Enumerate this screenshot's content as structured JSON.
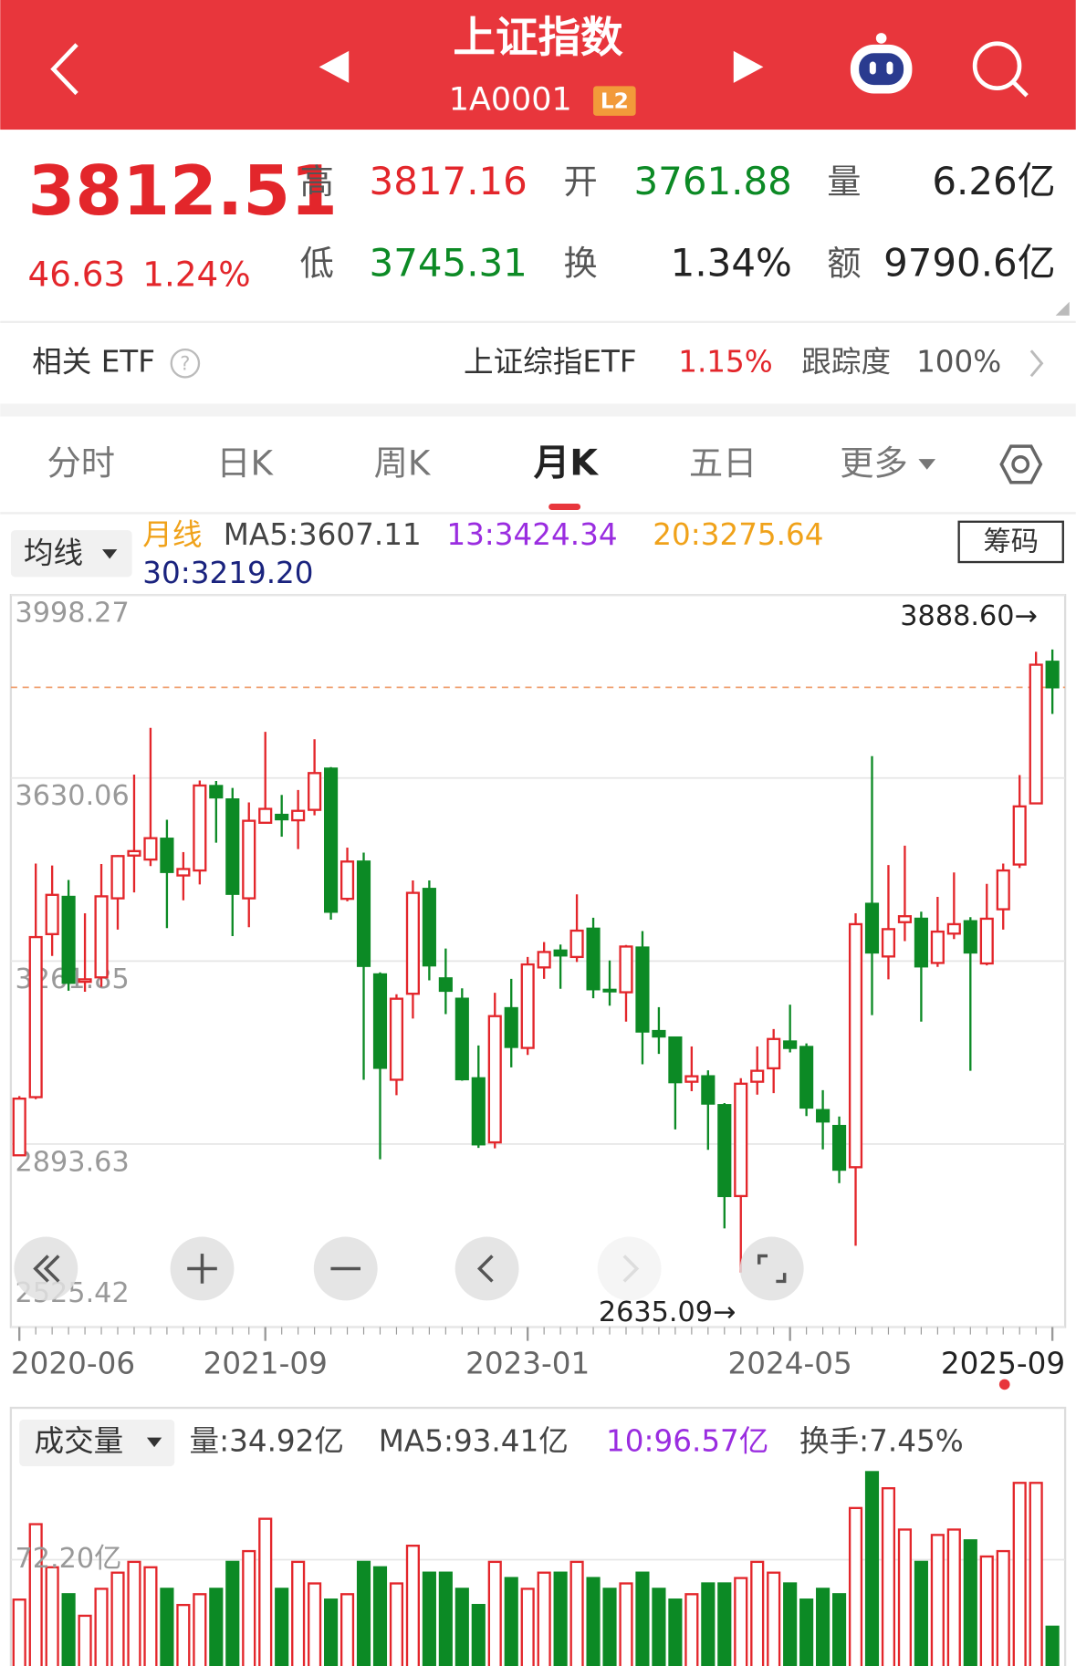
{
  "header": {
    "title": "上证指数",
    "code": "1A0001",
    "badge": "L2"
  },
  "quote": {
    "price": 3812.51,
    "change": 46.63,
    "change_pct": "1.24%",
    "labels": [
      "高",
      "开",
      "量",
      "低",
      "换",
      "额"
    ],
    "high": 3817.16,
    "open": 3761.88,
    "volume": "6.26亿",
    "low": 3745.31,
    "turnover": "1.34%",
    "amount": "9790.6亿"
  },
  "etf": {
    "label": "相关 ETF",
    "name": "上证综指ETF",
    "change": "1.15%",
    "tracking_label": "跟踪度",
    "tracking": "100%"
  },
  "tabs": [
    "分时",
    "日K",
    "周K",
    "月K",
    "五日",
    "更多"
  ],
  "indicator": {
    "selector": "均线",
    "period": "月线",
    "ma5": "MA5:3607.11",
    "ma13": "13:3424.34",
    "ma20": "20:3275.64",
    "ma30": "30:3219.20",
    "chip": "筹码"
  },
  "volume_legend": {
    "selector": "成交量",
    "vol": "量:34.92亿",
    "ma5": "MA5:93.41亿",
    "ma10": "10:96.57亿",
    "turnover": "换手:7.45%"
  },
  "chart_data": [
    {
      "type": "candlestick",
      "categories": [
        "2020-06",
        null,
        null,
        null,
        null,
        null,
        null,
        null,
        null,
        null,
        null,
        null,
        null,
        null,
        null,
        "2021-09",
        null,
        null,
        null,
        null,
        null,
        null,
        null,
        null,
        null,
        null,
        null,
        null,
        null,
        null,
        null,
        "2023-01",
        null,
        null,
        null,
        null,
        null,
        null,
        null,
        null,
        null,
        null,
        null,
        null,
        null,
        null,
        null,
        "2024-05",
        null,
        null,
        null,
        null,
        null,
        null,
        null,
        null,
        null,
        null,
        null,
        null,
        null,
        null,
        null,
        "2025-09"
      ],
      "open": [
        2871,
        2988,
        3316,
        3391,
        3220,
        3229,
        3388,
        3474,
        3466,
        3508,
        3434,
        3444,
        3614,
        3587,
        3388,
        3540,
        3556,
        3545,
        3566,
        3649,
        3387,
        3462,
        3235,
        3023,
        3196,
        3407,
        3227,
        3186,
        3026,
        2897,
        3167,
        3087,
        3249,
        3283,
        3270,
        3327,
        3204,
        3199,
        3289,
        3121,
        3108,
        3019,
        3030,
        2972,
        2789,
        3019,
        3046,
        3100,
        3089,
        2962,
        2930,
        2847,
        3377,
        3271,
        3340,
        3347,
        3258,
        3317,
        3342,
        3257,
        3366,
        3456,
        3579,
        3864
      ],
      "high": [
        2990,
        3458,
        3454,
        3425,
        3358,
        3457,
        3475,
        3637,
        3731,
        3546,
        3481,
        3625,
        3624,
        3610,
        3581,
        3723,
        3596,
        3606,
        3708,
        3652,
        3490,
        3480,
        3239,
        3195,
        3424,
        3424,
        3287,
        3207,
        3092,
        3198,
        3226,
        3270,
        3300,
        3295,
        3396,
        3349,
        3263,
        3294,
        3322,
        3169,
        3109,
        3090,
        3042,
        2976,
        3026,
        3090,
        3125,
        3174,
        3096,
        3002,
        2949,
        3358,
        3674,
        3455,
        3494,
        3361,
        3391,
        3440,
        3350,
        3417,
        3458,
        3636,
        3884,
        3888.6
      ],
      "low": [
        2872,
        2984,
        3272,
        3202,
        3200,
        3210,
        3325,
        3400,
        3453,
        3328,
        3384,
        3416,
        3500,
        3312,
        3330,
        3540,
        3512,
        3487,
        3555,
        3345,
        3382,
        3023,
        2863,
        2992,
        3146,
        3223,
        3155,
        3021,
        2886,
        2885,
        3048,
        3073,
        3226,
        3206,
        3260,
        3187,
        3172,
        3140,
        3054,
        3075,
        2923,
        3000,
        2882,
        2724,
        2635.09,
        2993,
        2996,
        3078,
        2950,
        2883,
        2815,
        2689,
        3153,
        3225,
        3302,
        3140,
        3250,
        3306,
        3041,
        3253,
        3325,
        3449,
        3579,
        3759
      ],
      "close": [
        2985,
        3310,
        3395,
        3218,
        3225,
        3392,
        3473,
        3483,
        3509,
        3441,
        3447,
        3615,
        3591,
        3397,
        3544,
        3568,
        3547,
        3564,
        3640,
        3361,
        3462,
        3252,
        3047,
        3186,
        3399,
        3253,
        3202,
        3024,
        2893,
        3151,
        3089,
        3255,
        3280,
        3273,
        3323,
        3205,
        3202,
        3291,
        3120,
        3110,
        3018,
        3030,
        2975,
        2789,
        3015,
        3041,
        3105,
        3087,
        2967,
        2939,
        2842,
        3336,
        3279,
        3326,
        3352,
        3251,
        3321,
        3336,
        3279,
        3347,
        3444,
        3573,
        3858,
        3812.51
      ],
      "up_color": "#e3262b",
      "down_color": "#0c8a25",
      "ylim": [
        2525.42,
        3998.27
      ],
      "yticks": [
        3998.27,
        3630.06,
        3261.85,
        2893.63,
        2525.42
      ],
      "grid": true,
      "annotations": [
        "3888.60→",
        "2635.09→"
      ]
    },
    {
      "type": "bar",
      "values": [
        50,
        92,
        68,
        53,
        41,
        56,
        65,
        71,
        68,
        56,
        47,
        53,
        56,
        71,
        77,
        95,
        56,
        71,
        59,
        50,
        53,
        71,
        68,
        59,
        80,
        65,
        65,
        56,
        47,
        71,
        62,
        56,
        65,
        65,
        71,
        62,
        56,
        59,
        65,
        56,
        50,
        53,
        59,
        59,
        62,
        71,
        65,
        59,
        50,
        56,
        53,
        101,
        121,
        112,
        89,
        71,
        86,
        89,
        83,
        74,
        77,
        115,
        115,
        34.92
      ],
      "ylim": [
        0,
        156.8
      ],
      "yticks": [
        {
          "value": 72.2,
          "label": "72.20亿"
        }
      ],
      "grid": true
    }
  ]
}
